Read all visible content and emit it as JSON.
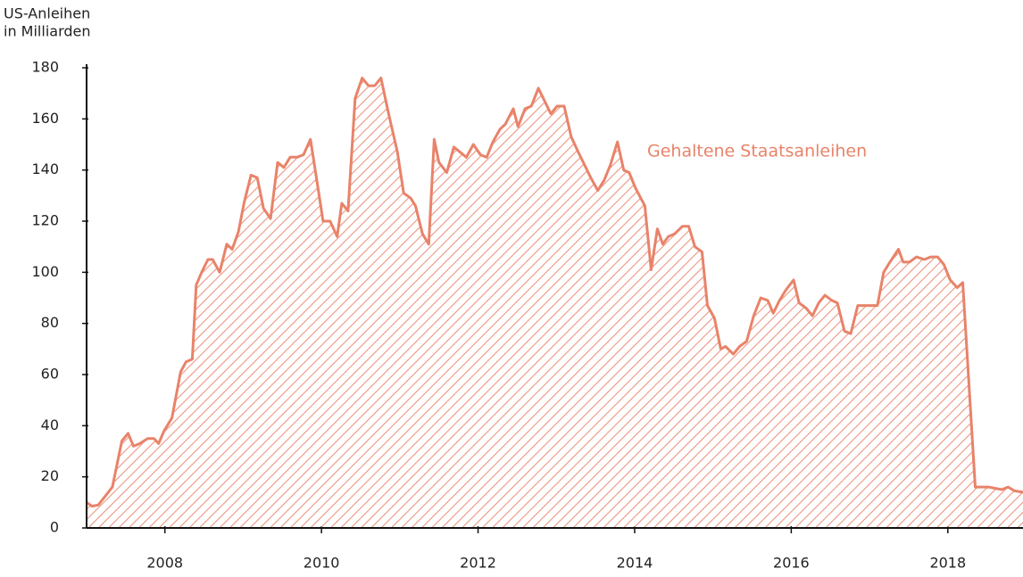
{
  "chart_data": {
    "type": "area",
    "y_label": [
      "US-Anleihen",
      "in Milliarden"
    ],
    "xlim": [
      2007,
      2018.96
    ],
    "ylim": [
      0,
      180
    ],
    "xticks": [
      2008,
      2010,
      2012,
      2014,
      2016,
      2018
    ],
    "yticks": [
      0,
      20,
      40,
      60,
      80,
      100,
      120,
      140,
      160,
      180
    ],
    "grid": false,
    "hatched": true,
    "x": [
      2007.0,
      2007.07,
      2007.15,
      2007.33,
      2007.45,
      2007.53,
      2007.6,
      2007.68,
      2007.78,
      2007.86,
      2007.92,
      2007.99,
      2008.09,
      2008.2,
      2008.27,
      2008.35,
      2008.4,
      2008.47,
      2008.55,
      2008.61,
      2008.7,
      2008.79,
      2008.86,
      2008.94,
      2009.01,
      2009.1,
      2009.18,
      2009.26,
      2009.35,
      2009.44,
      2009.52,
      2009.6,
      2009.69,
      2009.77,
      2009.86,
      2009.94,
      2010.02,
      2010.11,
      2010.2,
      2010.26,
      2010.34,
      2010.43,
      2010.52,
      2010.6,
      2010.68,
      2010.76,
      2010.85,
      2010.97,
      2011.05,
      2011.14,
      2011.2,
      2011.29,
      2011.37,
      2011.44,
      2011.5,
      2011.6,
      2011.69,
      2011.77,
      2011.85,
      2011.94,
      2012.03,
      2012.11,
      2012.19,
      2012.28,
      2012.35,
      2012.45,
      2012.51,
      2012.6,
      2012.68,
      2012.77,
      2012.85,
      2012.93,
      2013.01,
      2013.1,
      2013.19,
      2013.28,
      2013.36,
      2013.44,
      2013.53,
      2013.61,
      2013.69,
      2013.78,
      2013.86,
      2013.93,
      2014.01,
      2014.13,
      2014.21,
      2014.29,
      2014.36,
      2014.43,
      2014.51,
      2014.61,
      2014.69,
      2014.77,
      2014.86,
      2014.93,
      2015.02,
      2015.1,
      2015.16,
      2015.26,
      2015.34,
      2015.43,
      2015.52,
      2015.61,
      2015.7,
      2015.77,
      2015.85,
      2015.93,
      2016.03,
      2016.1,
      2016.19,
      2016.27,
      2016.35,
      2016.43,
      2016.52,
      2016.59,
      2016.68,
      2016.76,
      2016.85,
      2016.93,
      2017.02,
      2017.1,
      2017.18,
      2017.26,
      2017.37,
      2017.43,
      2017.51,
      2017.6,
      2017.7,
      2017.78,
      2017.87,
      2017.95,
      2018.03,
      2018.12,
      2018.19,
      2018.35,
      2018.44,
      2018.52,
      2018.61,
      2018.69,
      2018.77,
      2018.85,
      2018.96
    ],
    "series": [
      {
        "name": "Gehaltene Staatsanleihen",
        "color": "#e8836a",
        "values": [
          10,
          8.5,
          9,
          16,
          34,
          37,
          32,
          33,
          35,
          35,
          33,
          38,
          43,
          61,
          65,
          66,
          95,
          100,
          105,
          105,
          100,
          111,
          109,
          116,
          127,
          138,
          137,
          125,
          121,
          143,
          141,
          145,
          145,
          146,
          152,
          136,
          120,
          120,
          114,
          127,
          124,
          168,
          176,
          173,
          173,
          176,
          163,
          147,
          131,
          129,
          126,
          115,
          111,
          152,
          143,
          139,
          149,
          147,
          145,
          150,
          146,
          145,
          151,
          156,
          158,
          164,
          157,
          164,
          165,
          172,
          167,
          162,
          165,
          165,
          153,
          147,
          142,
          137,
          132,
          136,
          142,
          151,
          140,
          139,
          133,
          126,
          101,
          117,
          111,
          114,
          115,
          118,
          118,
          110,
          108,
          87,
          82,
          70,
          71,
          68,
          71,
          73,
          83,
          90,
          89,
          84,
          89,
          93,
          97,
          88,
          86,
          83,
          88,
          91,
          89,
          88,
          77,
          76,
          87,
          87,
          87,
          87,
          100,
          104,
          109,
          104,
          104,
          106,
          105,
          106,
          106,
          103,
          97,
          94,
          96,
          16,
          16,
          16,
          15.5,
          15,
          16,
          14.5,
          14
        ]
      }
    ]
  }
}
